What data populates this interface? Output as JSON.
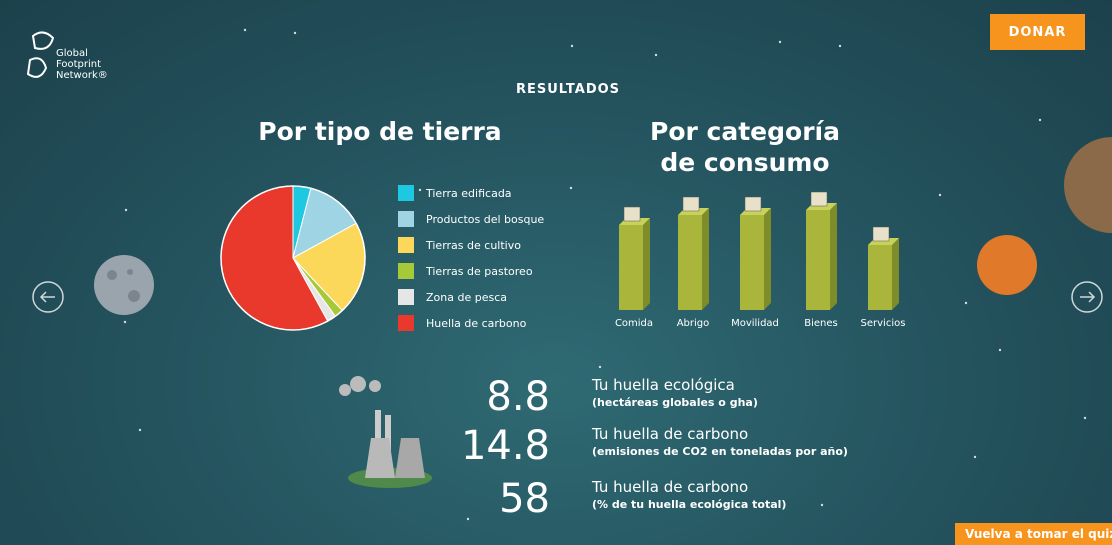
{
  "header": {
    "logo": [
      "Global",
      "Footprint",
      "Network®"
    ],
    "donate_button": "DONAR",
    "section_title": "RESULTADOS"
  },
  "chart_data": [
    {
      "type": "pie",
      "title": "Por tipo de tierra",
      "categories": [
        "Tierra edificada",
        "Productos del bosque",
        "Tierras de cultivo",
        "Tierras de pastoreo",
        "Zona de pesca",
        "Huella de carbono"
      ],
      "values": [
        4,
        13,
        21,
        2,
        2,
        58
      ],
      "colors": [
        "#1ec8e0",
        "#9ed4e3",
        "#fbd85a",
        "#a6c93a",
        "#e6e6e6",
        "#e8392c"
      ]
    },
    {
      "type": "bar",
      "title": "Por categoría de consumo",
      "categories": [
        "Comida",
        "Abrigo",
        "Movilidad",
        "Bienes",
        "Servicios"
      ],
      "values": [
        1.7,
        1.9,
        1.9,
        2.0,
        1.3
      ],
      "color": "#a9b63b"
    }
  ],
  "results": [
    {
      "value": 8.8,
      "label": "Tu huella ecológica",
      "sublabel": "(hectáreas globales o gha)"
    },
    {
      "value": 14.8,
      "label": "Tu huella de carbono",
      "sublabel": "(emisiones de CO2 en toneladas por año)"
    },
    {
      "value": 58,
      "label": "Tu huella de carbono",
      "sublabel": "(% de tu huella ecológica total)"
    }
  ],
  "retake_button": "Vuelva a tomar el quiz"
}
